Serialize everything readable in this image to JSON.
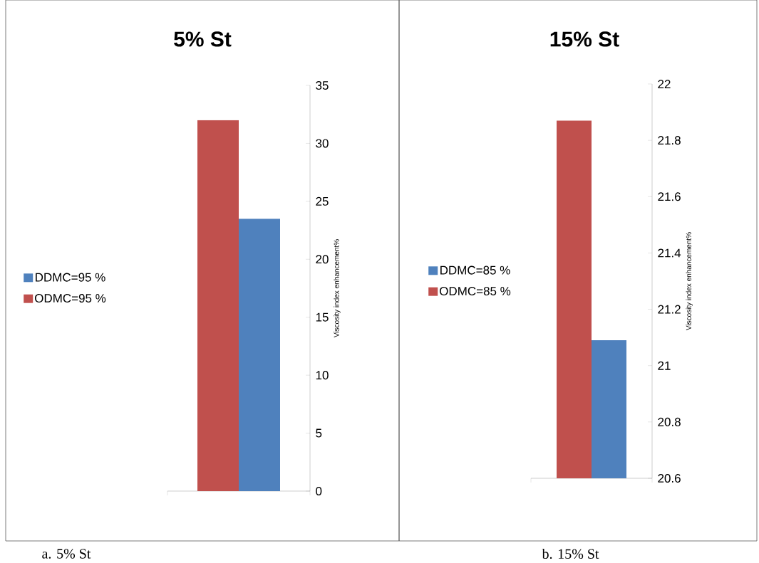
{
  "chart_data": [
    {
      "type": "bar",
      "title": "5% St",
      "ylabel": "Viscosity index enhancement%",
      "categories": [
        null
      ],
      "series": [
        {
          "name": "ODMC=95 %",
          "color": "#c0504d",
          "values": [
            32.0
          ]
        },
        {
          "name": "DDMC=95 %",
          "color": "#4f81bd",
          "values": [
            23.5
          ]
        }
      ],
      "ylim": [
        0,
        35
      ],
      "yticks": [
        0,
        5,
        10,
        15,
        20,
        25,
        30,
        35
      ],
      "legend": "left",
      "annotations": [
        "a. 5% St"
      ]
    },
    {
      "type": "bar",
      "title": "15% St",
      "ylabel": "Viscosity index enhancement%",
      "categories": [
        null
      ],
      "series": [
        {
          "name": "ODMC=85 %",
          "color": "#c0504d",
          "values": [
            21.87
          ]
        },
        {
          "name": "DDMC=85 %",
          "color": "#4f81bd",
          "values": [
            21.09
          ]
        }
      ],
      "ylim": [
        20.6,
        22
      ],
      "yticks": [
        20.6,
        20.8,
        21,
        21.2,
        21.4,
        21.6,
        21.8,
        22
      ],
      "legend": "left",
      "annotations": [
        "b. 15% St"
      ]
    }
  ]
}
